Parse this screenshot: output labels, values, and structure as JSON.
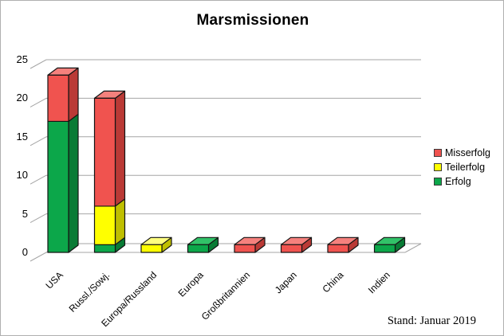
{
  "window": {
    "background": "#ffffff",
    "border_color": "#b0b0b0"
  },
  "title": "Marsmissionen",
  "footer": {
    "text": "Stand: Januar 2019"
  },
  "legend": {
    "position": "right",
    "items": [
      {
        "label": "Misserfolg",
        "color": "#F0534F"
      },
      {
        "label": "Teilerfolg",
        "color": "#FFFF00"
      },
      {
        "label": "Erfolg",
        "color": "#0CA74A"
      }
    ]
  },
  "axes": {
    "ytick_labels": [
      "0",
      "5",
      "10",
      "15",
      "20",
      "25"
    ],
    "grid_color": "#A6A6A6"
  },
  "chart_data": {
    "type": "bar",
    "stacked": true,
    "effect": "3d",
    "title": "Marsmissionen",
    "categories": [
      "USA",
      "Russl./Sowj.",
      "Europa/Russland",
      "Europa",
      "Großbritannien",
      "Japan",
      "China",
      "Indien"
    ],
    "series": [
      {
        "name": "Erfolg",
        "color": "#0CA74A",
        "color_top": "#31C268",
        "color_side": "#097B35",
        "values": [
          17,
          1,
          0,
          1,
          0,
          0,
          0,
          1
        ]
      },
      {
        "name": "Teilerfolg",
        "color": "#FFFF00",
        "color_top": "#FFFF80",
        "color_side": "#BFBF00",
        "values": [
          0,
          5,
          1,
          0,
          0,
          0,
          0,
          0
        ]
      },
      {
        "name": "Misserfolg",
        "color": "#F0534F",
        "color_top": "#F5817D",
        "color_side": "#BA3A36",
        "values": [
          6,
          14,
          0,
          0,
          1,
          1,
          1,
          0
        ]
      }
    ],
    "totals": [
      23,
      20,
      1,
      1,
      1,
      1,
      1,
      1
    ],
    "ylim": [
      0,
      25
    ],
    "yticks": [
      0,
      5,
      10,
      15,
      20,
      25
    ],
    "grid": true,
    "legend_position": "right",
    "annotation": "Stand: Januar 2019"
  }
}
